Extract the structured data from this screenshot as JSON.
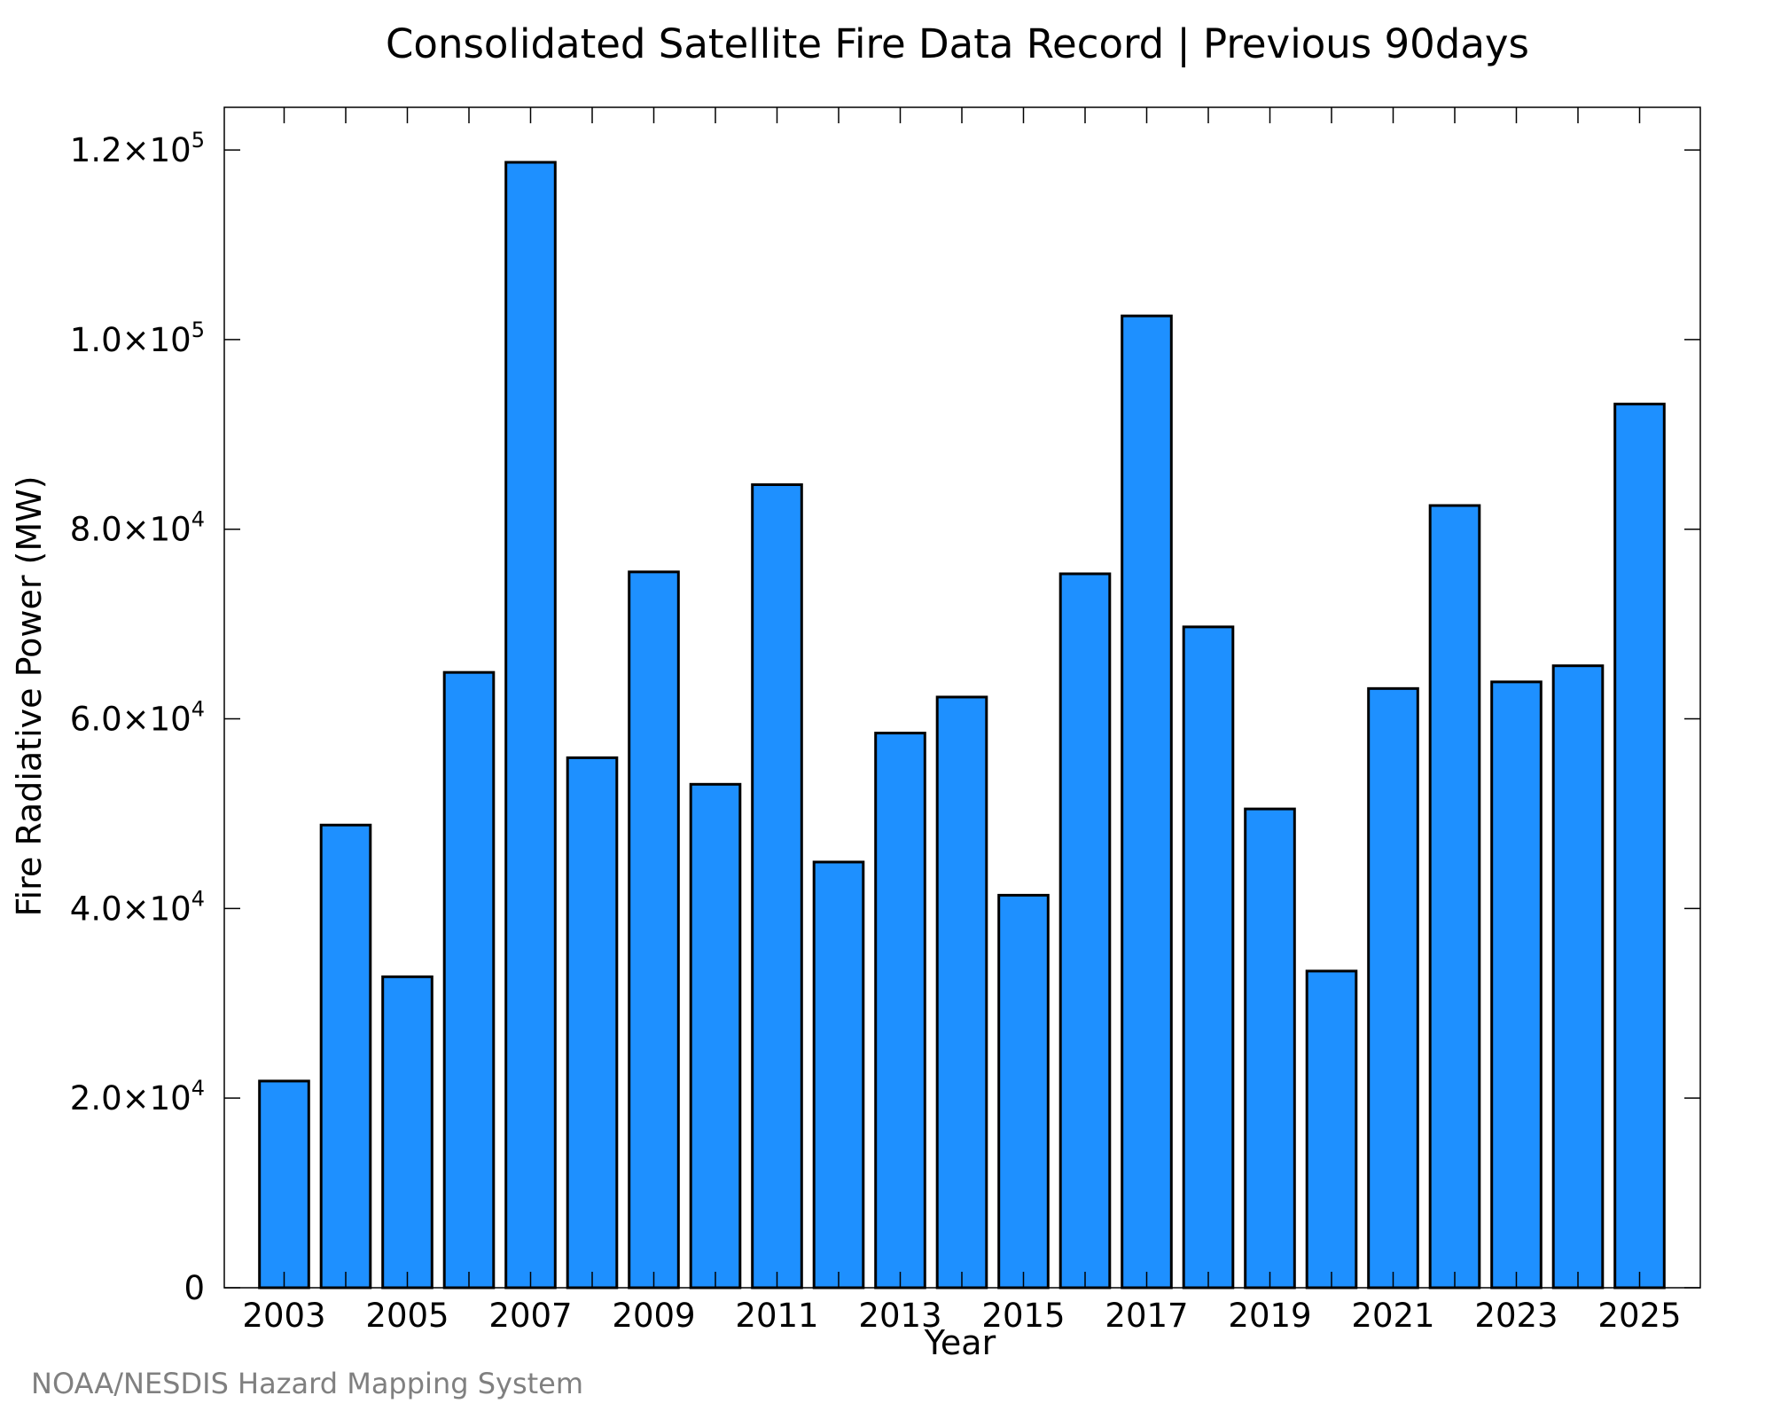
{
  "chart_data": {
    "type": "bar",
    "title": "Consolidated Satellite Fire Data Record | Previous 90days",
    "xlabel": "Year",
    "ylabel": "Fire Radiative Power (MW)",
    "ylim": [
      0,
      124500
    ],
    "bar_color": "#1e90ff",
    "bar_edge_color": "#000000",
    "grid": false,
    "categories": [
      "2003",
      "2004",
      "2005",
      "2006",
      "2007",
      "2008",
      "2009",
      "2010",
      "2011",
      "2012",
      "2013",
      "2014",
      "2015",
      "2016",
      "2017",
      "2018",
      "2019",
      "2020",
      "2021",
      "2022",
      "2023",
      "2024",
      "2025"
    ],
    "values": [
      21800,
      48800,
      32800,
      64900,
      118700,
      55900,
      75500,
      53100,
      84700,
      44900,
      58500,
      62300,
      41400,
      75300,
      102500,
      69700,
      50500,
      33400,
      63200,
      82500,
      63900,
      65600,
      93200
    ],
    "x_tick_labels": [
      "2003",
      "2005",
      "2007",
      "2009",
      "2011",
      "2013",
      "2015",
      "2017",
      "2019",
      "2021",
      "2023",
      "2025"
    ],
    "y_ticks": [
      {
        "value": 0,
        "mantissa": "0",
        "exp": ""
      },
      {
        "value": 20000,
        "mantissa": "2.0×10",
        "exp": "4"
      },
      {
        "value": 40000,
        "mantissa": "4.0×10",
        "exp": "4"
      },
      {
        "value": 60000,
        "mantissa": "6.0×10",
        "exp": "4"
      },
      {
        "value": 80000,
        "mantissa": "8.0×10",
        "exp": "4"
      },
      {
        "value": 100000,
        "mantissa": "1.0×10",
        "exp": "5"
      },
      {
        "value": 120000,
        "mantissa": "1.2×10",
        "exp": "5"
      }
    ]
  },
  "credit": "NOAA/NESDIS Hazard Mapping System"
}
